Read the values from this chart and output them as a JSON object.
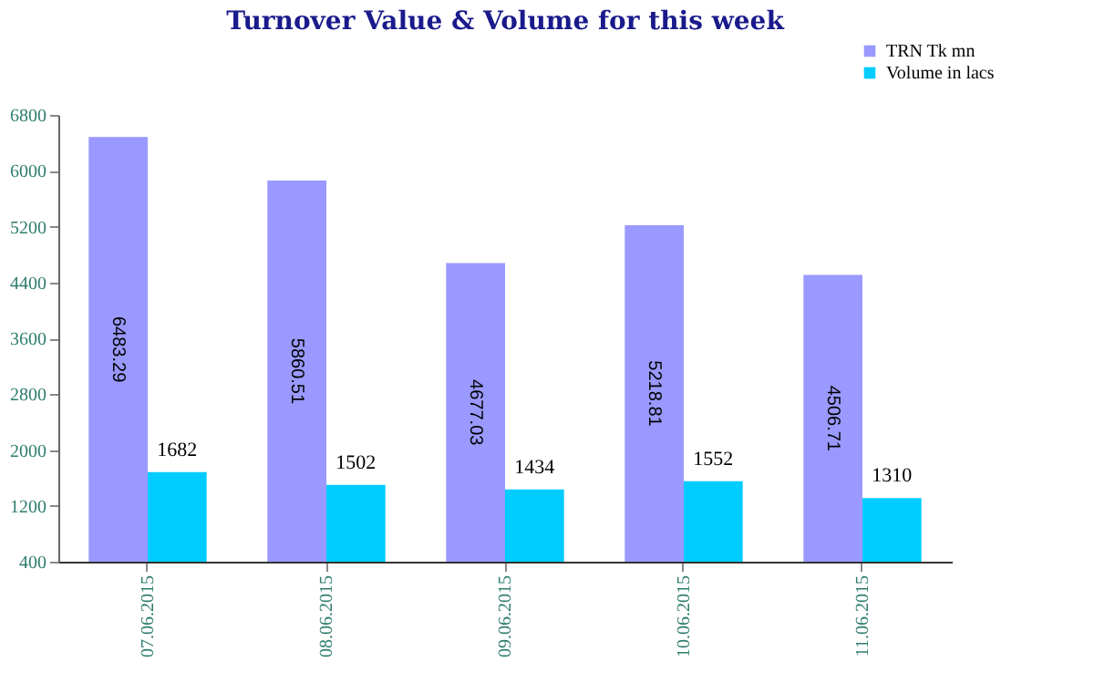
{
  "chart_data": {
    "type": "bar",
    "title": "Turnover Value & Volume for this week",
    "categories": [
      "07.06.2015",
      "08.06.2015",
      "09.06.2015",
      "10.06.2015",
      "11.06.2015"
    ],
    "series": [
      {
        "name": "TRN Tk mn",
        "color": "#9999ff",
        "values": [
          6483.29,
          5860.51,
          4677.03,
          5218.81,
          4506.71
        ]
      },
      {
        "name": "Volume in lacs",
        "color": "#00ccff",
        "values": [
          1682,
          1502,
          1434,
          1552,
          1310
        ]
      }
    ],
    "ylim": [
      400,
      6800
    ],
    "yticks": [
      400,
      1200,
      2000,
      2800,
      3600,
      4400,
      5200,
      6000,
      6800
    ],
    "data_labels": true,
    "grid": false,
    "legend": "top right"
  }
}
